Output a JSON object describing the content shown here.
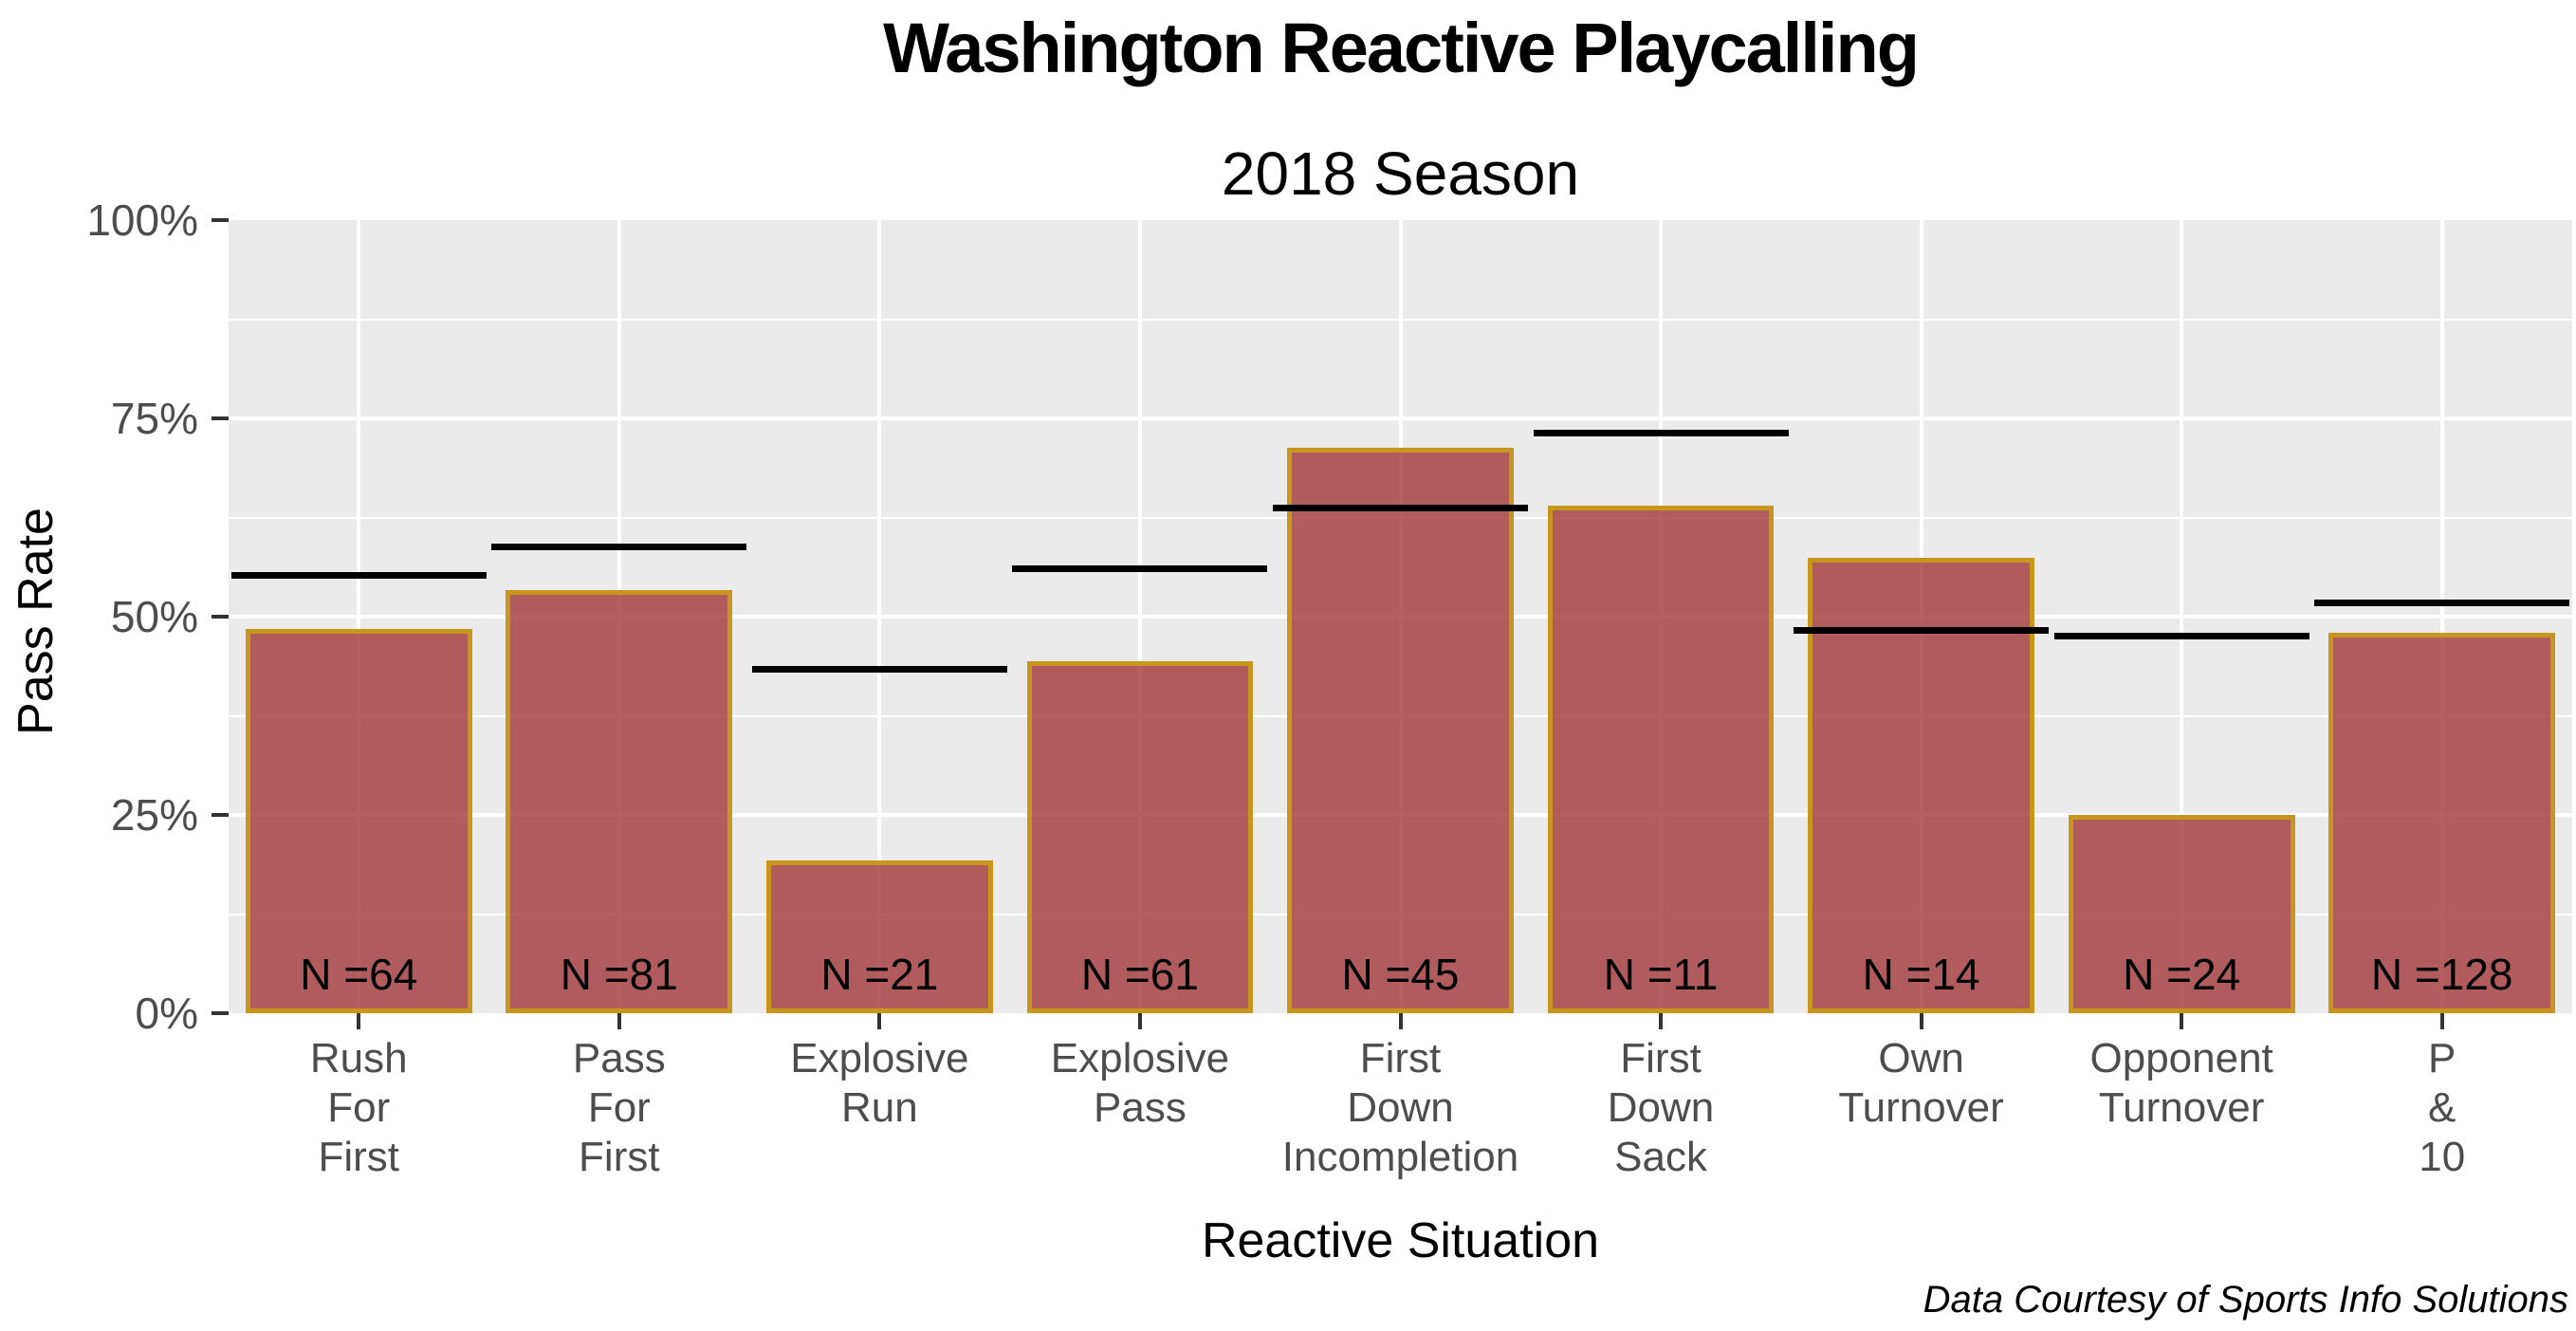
{
  "chart_data": {
    "type": "bar",
    "title": "Washington Reactive Playcalling",
    "subtitle": "2018 Season",
    "xlabel": "Reactive Situation",
    "ylabel": "Pass Rate",
    "caption": "Data Courtesy of Sports Info Solutions",
    "ylim": [
      0,
      100
    ],
    "yticks": [
      0,
      25,
      50,
      75,
      100
    ],
    "ytick_labels": [
      "0%",
      "25%",
      "50%",
      "75%",
      "100%"
    ],
    "minor_gridlines": [
      12.5,
      37.5,
      62.5,
      87.5
    ],
    "major_gridlines": [
      25,
      50,
      75
    ],
    "grid": true,
    "legend": false,
    "categories": [
      "Rush For First",
      "Pass For First",
      "Explosive Run",
      "Explosive Pass",
      "First Down Incompletion",
      "First Down Sack",
      "Own Turnover",
      "Opponent Turnover",
      "P & 10"
    ],
    "category_label_lines": [
      [
        "Rush",
        "For",
        "First"
      ],
      [
        "Pass",
        "For",
        "First"
      ],
      [
        "Explosive",
        "Run"
      ],
      [
        "Explosive",
        "Pass"
      ],
      [
        "First",
        "Down",
        "Incompletion"
      ],
      [
        "First",
        "Down",
        "Sack"
      ],
      [
        "Own",
        "Turnover"
      ],
      [
        "Opponent",
        "Turnover"
      ],
      [
        "P",
        "&",
        "10"
      ]
    ],
    "series": [
      {
        "name": "pass-rate-bars",
        "values": [
          48.4,
          53.4,
          19.3,
          44.4,
          71.3,
          64.0,
          57.4,
          25.0,
          48.0
        ]
      },
      {
        "name": "black-marker-lines",
        "values": [
          55.2,
          58.8,
          43.4,
          56.1,
          63.7,
          73.1,
          48.3,
          47.5,
          51.7
        ]
      }
    ],
    "bar_count_labels": [
      "N =64",
      "N =81",
      "N =21",
      "N =61",
      "N =45",
      "N =11",
      "N =14",
      "N =24",
      "N =128"
    ],
    "colors": {
      "bar_fill": "rgba(163,56,56,0.8)",
      "bar_border": "#C8951D",
      "panel_background": "#EBEBEB",
      "gridline": "#FFFFFF",
      "marker_line": "#000000",
      "axis_tick_text": "#4D4D4D",
      "tick_mark": "#333333",
      "title_text": "#000000"
    }
  }
}
